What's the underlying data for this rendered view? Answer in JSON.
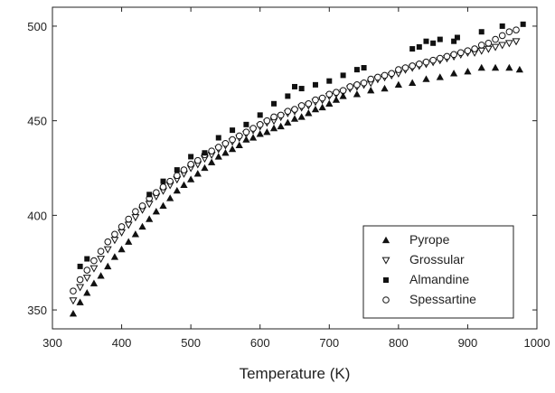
{
  "chart_data": {
    "type": "scatter",
    "title": "",
    "xlabel": "Temperature (K)",
    "ylabel": "",
    "xlim": [
      300,
      1000
    ],
    "ylim": [
      340,
      510
    ],
    "x_ticks": [
      300,
      400,
      500,
      600,
      700,
      800,
      900,
      1000
    ],
    "y_ticks": [
      350,
      400,
      450,
      500
    ],
    "grid": false,
    "legend_position": "bottom-right",
    "series": [
      {
        "name": "Pyrope",
        "marker": "filled-triangle-up",
        "x": [
          330,
          340,
          350,
          360,
          370,
          380,
          390,
          400,
          410,
          420,
          430,
          440,
          450,
          460,
          470,
          480,
          490,
          500,
          510,
          520,
          530,
          540,
          550,
          560,
          570,
          580,
          590,
          600,
          610,
          620,
          630,
          640,
          650,
          660,
          670,
          680,
          690,
          700,
          710,
          720,
          740,
          760,
          780,
          800,
          820,
          840,
          860,
          880,
          900,
          920,
          940,
          960,
          975
        ],
        "y": [
          348,
          354,
          359,
          364,
          368,
          373,
          378,
          382,
          386,
          390,
          394,
          398,
          402,
          405,
          409,
          413,
          416,
          419,
          422,
          425,
          428,
          431,
          433,
          435,
          437,
          440,
          441,
          443,
          444,
          446,
          447,
          449,
          451,
          452,
          454,
          456,
          457,
          459,
          461,
          463,
          464,
          466,
          467,
          469,
          470,
          472,
          473,
          475,
          476,
          478,
          478,
          478,
          477
        ]
      },
      {
        "name": "Grossular",
        "marker": "open-triangle-down",
        "x": [
          330,
          340,
          350,
          360,
          370,
          380,
          390,
          400,
          410,
          420,
          430,
          440,
          450,
          460,
          470,
          480,
          490,
          500,
          510,
          520,
          530,
          540,
          550,
          560,
          570,
          580,
          590,
          600,
          610,
          620,
          630,
          640,
          650,
          660,
          670,
          680,
          690,
          700,
          710,
          720,
          730,
          740,
          750,
          760,
          770,
          780,
          790,
          800,
          810,
          820,
          830,
          840,
          850,
          860,
          870,
          880,
          890,
          900,
          910,
          920,
          930,
          940,
          950,
          960,
          970
        ],
        "y": [
          355,
          362,
          367,
          372,
          377,
          382,
          387,
          391,
          395,
          399,
          403,
          406,
          410,
          413,
          416,
          419,
          422,
          425,
          427,
          430,
          432,
          435,
          437,
          439,
          441,
          443,
          445,
          447,
          449,
          450,
          452,
          454,
          455,
          457,
          458,
          460,
          461,
          463,
          464,
          465,
          467,
          468,
          469,
          470,
          472,
          473,
          474,
          475,
          477,
          478,
          479,
          480,
          481,
          482,
          483,
          484,
          485,
          486,
          486,
          487,
          488,
          489,
          490,
          491,
          492
        ]
      },
      {
        "name": "Almandine",
        "marker": "filled-square",
        "x": [
          340,
          350,
          440,
          460,
          480,
          500,
          520,
          540,
          560,
          580,
          600,
          620,
          640,
          650,
          660,
          680,
          700,
          720,
          740,
          750,
          820,
          830,
          840,
          850,
          860,
          880,
          885,
          920,
          950,
          980
        ],
        "y": [
          373,
          377,
          411,
          418,
          424,
          431,
          433,
          441,
          445,
          448,
          453,
          459,
          463,
          468,
          467,
          469,
          471,
          474,
          477,
          478,
          488,
          489,
          492,
          491,
          493,
          492,
          494,
          497,
          500,
          501
        ]
      },
      {
        "name": "Spessartine",
        "marker": "open-circle",
        "x": [
          330,
          340,
          350,
          360,
          370,
          380,
          390,
          400,
          410,
          420,
          430,
          440,
          450,
          460,
          470,
          480,
          490,
          500,
          510,
          520,
          530,
          540,
          550,
          560,
          570,
          580,
          590,
          600,
          610,
          620,
          630,
          640,
          650,
          660,
          670,
          680,
          690,
          700,
          710,
          720,
          730,
          740,
          750,
          760,
          770,
          780,
          790,
          800,
          810,
          820,
          830,
          840,
          850,
          860,
          870,
          880,
          890,
          900,
          910,
          920,
          930,
          940,
          950,
          960,
          970
        ],
        "y": [
          360,
          366,
          371,
          376,
          381,
          386,
          390,
          394,
          398,
          402,
          405,
          409,
          412,
          415,
          418,
          421,
          424,
          427,
          429,
          432,
          434,
          436,
          438,
          440,
          442,
          444,
          446,
          448,
          450,
          452,
          453,
          455,
          456,
          458,
          459,
          461,
          462,
          464,
          465,
          466,
          468,
          469,
          470,
          472,
          473,
          474,
          475,
          477,
          478,
          479,
          480,
          481,
          482,
          483,
          484,
          485,
          486,
          487,
          488,
          490,
          491,
          493,
          495,
          497,
          498
        ]
      }
    ]
  }
}
